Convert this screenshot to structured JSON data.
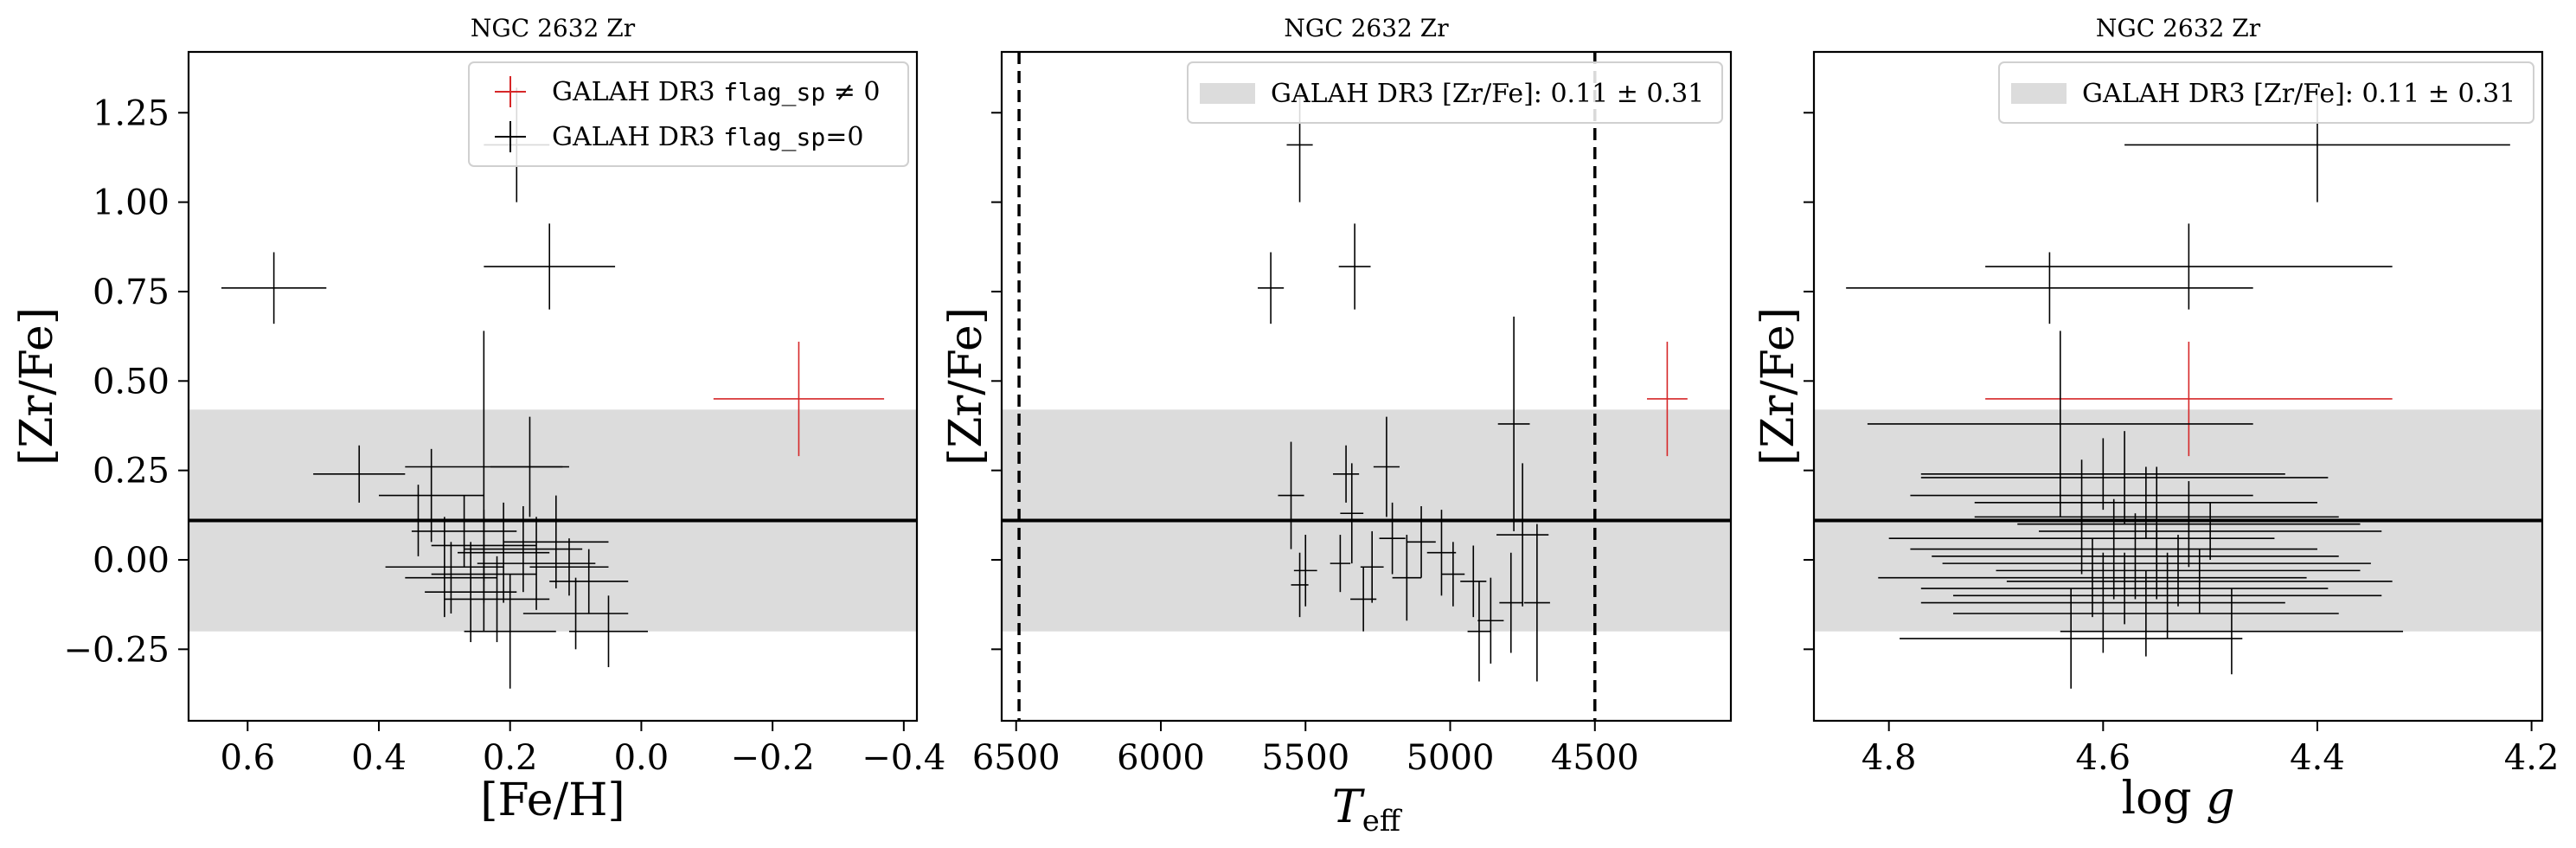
{
  "chart_data": [
    {
      "type": "scatter",
      "title": "NGC 2632 Zr",
      "xlabel": "[Fe/H]",
      "ylabel": "[Zr/Fe]",
      "xlim": [
        0.69,
        -0.42
      ],
      "ylim": [
        -0.45,
        1.42
      ],
      "xticks": [
        0.6,
        0.4,
        0.2,
        0.0,
        -0.2,
        -0.4
      ],
      "xtick_labels": [
        "0.6",
        "0.4",
        "0.2",
        "0.0",
        "−0.2",
        "−0.4"
      ],
      "yticks": [
        -0.25,
        0.0,
        0.25,
        0.5,
        0.75,
        1.0,
        1.25
      ],
      "ytick_labels": [
        "−0.25",
        "0.00",
        "0.25",
        "0.50",
        "0.75",
        "1.00",
        "1.25"
      ],
      "band": [
        -0.2,
        0.42
      ],
      "mean_line": 0.11,
      "legend": {
        "placement": "top-right",
        "entries": [
          {
            "prefix": "GALAH DR3 ",
            "code": "flag_sp",
            "suffix": " ≠ 0",
            "color": "#d62728"
          },
          {
            "prefix": "GALAH DR3 ",
            "code": "flag_sp",
            "suffix": "=0",
            "color": "#000000"
          }
        ]
      },
      "series": [
        {
          "color": "#d62728",
          "points": [
            [
              -0.24,
              0.45,
              0.13,
              0.16
            ]
          ]
        },
        {
          "color": "#000000",
          "points": [
            [
              0.56,
              0.76,
              0.08,
              0.1
            ],
            [
              0.14,
              0.82,
              0.1,
              0.12
            ],
            [
              0.19,
              1.16,
              0.05,
              0.16
            ],
            [
              0.43,
              0.24,
              0.07,
              0.08
            ],
            [
              0.32,
              0.18,
              0.08,
              0.13
            ],
            [
              0.34,
              0.11,
              0.06,
              0.1
            ],
            [
              0.24,
              0.26,
              0.12,
              0.38
            ],
            [
              0.17,
              0.26,
              0.06,
              0.14
            ],
            [
              0.27,
              0.08,
              0.08,
              0.1
            ],
            [
              0.24,
              0.04,
              0.08,
              0.1
            ],
            [
              0.21,
              0.02,
              0.07,
              0.14
            ],
            [
              0.18,
              0.03,
              0.09,
              0.12
            ],
            [
              0.16,
              -0.01,
              0.09,
              0.13
            ],
            [
              0.29,
              -0.05,
              0.07,
              0.1
            ],
            [
              0.26,
              -0.09,
              0.07,
              0.14
            ],
            [
              0.22,
              -0.11,
              0.08,
              0.12
            ],
            [
              0.24,
              -0.04,
              0.08,
              0.16
            ],
            [
              0.2,
              -0.2,
              0.07,
              0.16
            ],
            [
              0.11,
              -0.02,
              0.06,
              0.08
            ],
            [
              0.08,
              -0.06,
              0.06,
              0.09
            ],
            [
              0.1,
              -0.15,
              0.08,
              0.1
            ],
            [
              0.05,
              -0.2,
              0.06,
              0.1
            ],
            [
              0.13,
              0.05,
              0.08,
              0.13
            ],
            [
              0.3,
              -0.02,
              0.09,
              0.14
            ]
          ]
        }
      ]
    },
    {
      "type": "scatter",
      "title": "NGC 2632 Zr",
      "xlabel": "T_eff",
      "ylabel": "[Zr/Fe]",
      "xlim": [
        6550,
        4030
      ],
      "ylim": [
        -0.45,
        1.42
      ],
      "xticks": [
        6500,
        6000,
        5500,
        5000,
        4500
      ],
      "xtick_labels": [
        "6500",
        "6000",
        "5500",
        "5000",
        "4500"
      ],
      "yticks": [
        -0.25,
        0.0,
        0.25,
        0.5,
        0.75,
        1.0,
        1.25
      ],
      "ytick_labels": [
        "",
        "",
        "",
        "",
        "",
        "",
        ""
      ],
      "band": [
        -0.2,
        0.42
      ],
      "mean_line": 0.11,
      "vlines": [
        6490,
        4500
      ],
      "legend": {
        "placement": "top-right",
        "entries": [
          {
            "prefix": "GALAH DR3 [Zr/Fe]: 0.11 ± 0.31",
            "code": "",
            "suffix": "",
            "color": "#dcdcdc"
          }
        ]
      },
      "series": [
        {
          "color": "#d62728",
          "points": [
            [
              4250,
              0.45,
              70,
              0.16
            ]
          ]
        },
        {
          "color": "#000000",
          "points": [
            [
              5620,
              0.76,
              45,
              0.1
            ],
            [
              5330,
              0.82,
              55,
              0.12
            ],
            [
              5520,
              1.16,
              45,
              0.16
            ],
            [
              5360,
              0.24,
              45,
              0.08
            ],
            [
              5220,
              0.26,
              45,
              0.14
            ],
            [
              5550,
              0.18,
              45,
              0.15
            ],
            [
              5340,
              0.13,
              40,
              0.14
            ],
            [
              5200,
              0.06,
              45,
              0.1
            ],
            [
              5100,
              0.05,
              50,
              0.1
            ],
            [
              5030,
              0.02,
              50,
              0.12
            ],
            [
              5270,
              -0.02,
              40,
              0.1
            ],
            [
              5380,
              -0.01,
              35,
              0.08
            ],
            [
              5500,
              -0.03,
              40,
              0.1
            ],
            [
              5520,
              -0.07,
              30,
              0.09
            ],
            [
              5300,
              -0.11,
              45,
              0.09
            ],
            [
              4920,
              -0.06,
              45,
              0.1
            ],
            [
              4990,
              -0.04,
              40,
              0.09
            ],
            [
              4860,
              -0.17,
              45,
              0.12
            ],
            [
              4900,
              -0.2,
              40,
              0.14
            ],
            [
              4790,
              -0.12,
              40,
              0.14
            ],
            [
              4780,
              0.38,
              55,
              0.3
            ],
            [
              4750,
              0.07,
              90,
              0.2
            ],
            [
              4700,
              -0.12,
              45,
              0.22
            ],
            [
              5150,
              -0.05,
              50,
              0.12
            ]
          ]
        }
      ]
    },
    {
      "type": "scatter",
      "title": "NGC 2632 Zr",
      "xlabel": "log g",
      "ylabel": "[Zr/Fe]",
      "xlim": [
        4.87,
        4.19
      ],
      "ylim": [
        -0.45,
        1.42
      ],
      "xticks": [
        4.8,
        4.6,
        4.4,
        4.2
      ],
      "xtick_labels": [
        "4.8",
        "4.6",
        "4.4",
        "4.2"
      ],
      "yticks": [
        -0.25,
        0.0,
        0.25,
        0.5,
        0.75,
        1.0,
        1.25
      ],
      "ytick_labels": [
        "",
        "",
        "",
        "",
        "",
        "",
        ""
      ],
      "band": [
        -0.2,
        0.42
      ],
      "mean_line": 0.11,
      "legend": {
        "placement": "top-right",
        "entries": [
          {
            "prefix": "GALAH DR3 [Zr/Fe]: 0.11 ± 0.31",
            "code": "",
            "suffix": "",
            "color": "#dcdcdc"
          }
        ]
      },
      "series": [
        {
          "color": "#d62728",
          "points": [
            [
              4.52,
              0.45,
              0.19,
              0.16
            ]
          ]
        },
        {
          "color": "#000000",
          "points": [
            [
              4.4,
              1.16,
              0.18,
              0.16
            ],
            [
              4.52,
              0.82,
              0.19,
              0.12
            ],
            [
              4.65,
              0.76,
              0.19,
              0.1
            ],
            [
              4.64,
              0.38,
              0.18,
              0.26
            ],
            [
              4.6,
              0.24,
              0.17,
              0.1
            ],
            [
              4.58,
              0.23,
              0.19,
              0.13
            ],
            [
              4.62,
              0.18,
              0.16,
              0.1
            ],
            [
              4.56,
              0.16,
              0.16,
              0.1
            ],
            [
              4.55,
              0.12,
              0.17,
              0.14
            ],
            [
              4.52,
              0.1,
              0.16,
              0.12
            ],
            [
              4.5,
              0.08,
              0.16,
              0.08
            ],
            [
              4.62,
              0.06,
              0.18,
              0.1
            ],
            [
              4.59,
              0.03,
              0.19,
              0.14
            ],
            [
              4.57,
              0.01,
              0.19,
              0.12
            ],
            [
              4.55,
              -0.01,
              0.2,
              0.1
            ],
            [
              4.53,
              -0.03,
              0.17,
              0.1
            ],
            [
              4.61,
              -0.05,
              0.2,
              0.11
            ],
            [
              4.51,
              -0.06,
              0.18,
              0.09
            ],
            [
              4.58,
              -0.08,
              0.19,
              0.1
            ],
            [
              4.54,
              -0.1,
              0.2,
              0.12
            ],
            [
              4.6,
              -0.12,
              0.17,
              0.14
            ],
            [
              4.56,
              -0.15,
              0.18,
              0.12
            ],
            [
              4.63,
              -0.22,
              0.16,
              0.14
            ],
            [
              4.48,
              -0.2,
              0.16,
              0.12
            ]
          ]
        }
      ]
    }
  ]
}
